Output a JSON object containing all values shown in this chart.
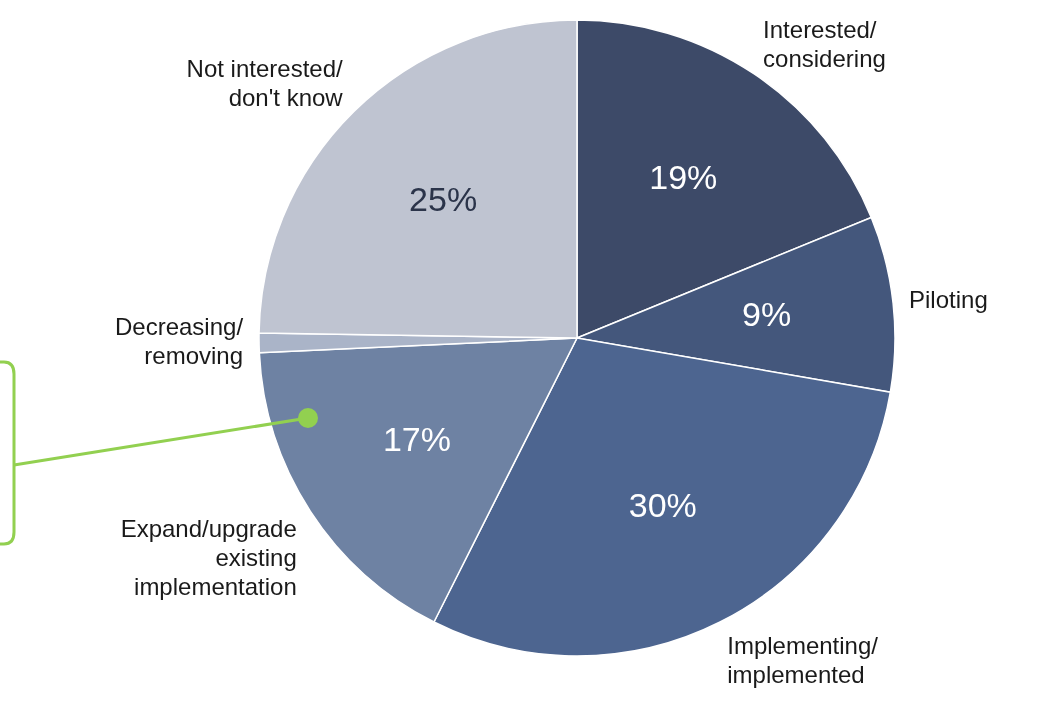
{
  "chart_data": {
    "type": "pie",
    "categories": [
      "Interested/ considering",
      "Piloting",
      "Implementing/ implemented",
      "Expand/upgrade existing implementation",
      "Decreasing/ removing",
      "Not interested/ don't know"
    ],
    "values": [
      19,
      9,
      30,
      17,
      1,
      25
    ],
    "value_labels": [
      "19%",
      "9%",
      "30%",
      "17%",
      null,
      "25%"
    ],
    "colors": [
      "#3d4a68",
      "#44577c",
      "#4d6590",
      "#6e82a3",
      "#aab4c8",
      "#bfc4d1"
    ]
  }
}
